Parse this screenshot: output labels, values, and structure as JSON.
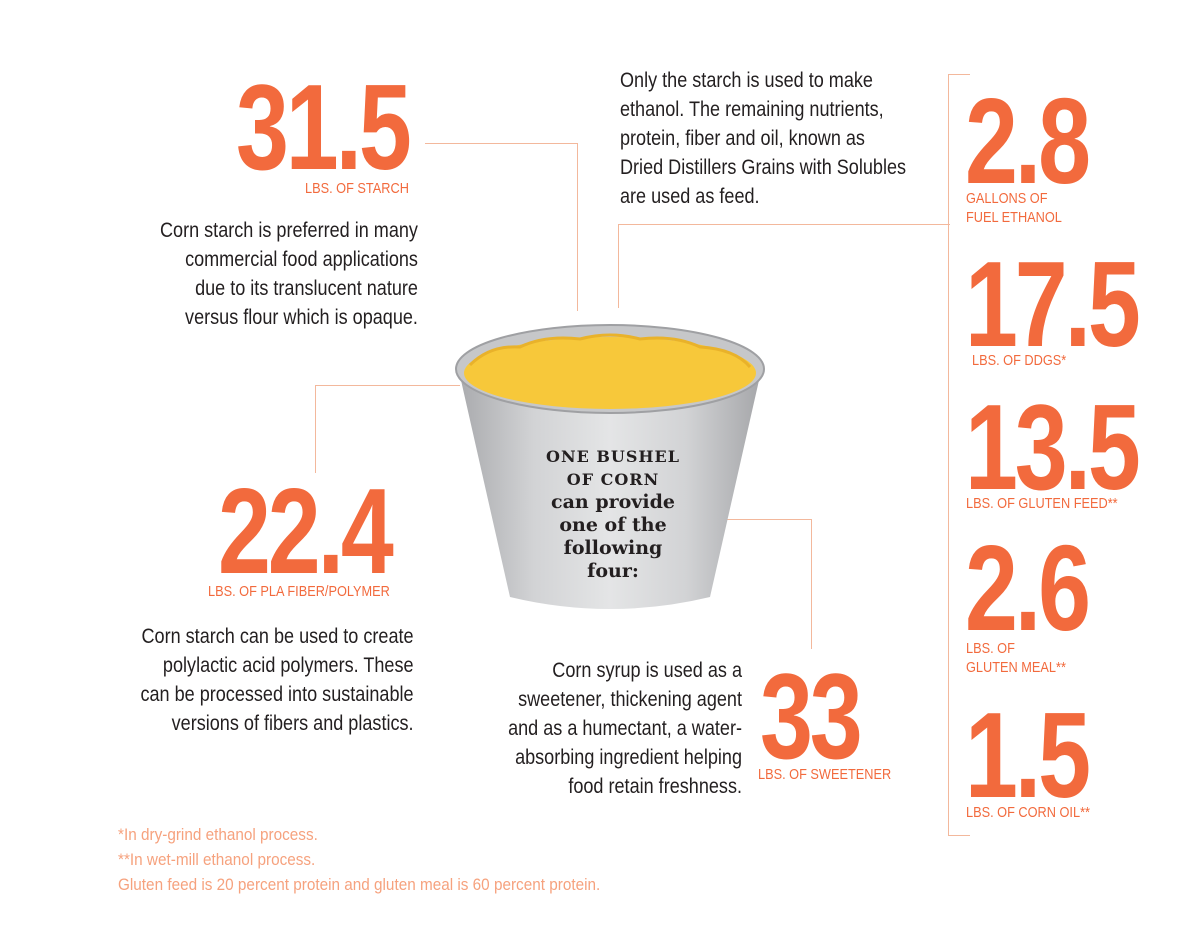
{
  "starch": {
    "value": "31.5",
    "unit": "LBS. OF STARCH",
    "text": [
      "Corn starch is preferred in many",
      "commercial food applications",
      "due to its translucent nature",
      "versus flour which is opaque."
    ]
  },
  "ethanol_note": {
    "text": [
      "Only the starch is used to make",
      "ethanol. The remaining nutrients,",
      "protein, fiber and oil, known as",
      "Dried Distillers Grains with Solubles",
      "are used as feed."
    ]
  },
  "pla": {
    "value": "22.4",
    "unit": "LBS. OF PLA FIBER/POLYMER",
    "text": [
      "Corn starch can be used to create",
      "polylactic acid polymers. These",
      "can be processed into sustainable",
      "versions of fibers and plastics."
    ]
  },
  "sweetener": {
    "value": "33",
    "unit": "LBS. OF SWEETENER",
    "text": [
      "Corn syrup is used as a",
      "sweetener, thickening agent",
      "and as a humectant, a water-",
      "absorbing ingredient helping",
      "food retain freshness."
    ]
  },
  "bushel": {
    "lines": [
      "ONE BUSHEL",
      "OF CORN",
      "can provide",
      "one of the",
      "following",
      "four:"
    ]
  },
  "ethanol_items": [
    {
      "value": "2.8",
      "unit_lines": [
        "GALLONS OF",
        "FUEL ETHANOL"
      ]
    },
    {
      "value": "17.5",
      "unit_lines": [
        "LBS. OF DDGS*"
      ]
    },
    {
      "value": "13.5",
      "unit_lines": [
        "LBS. OF GLUTEN FEED**"
      ]
    },
    {
      "value": "2.6",
      "unit_lines": [
        "LBS. OF",
        "GLUTEN MEAL**"
      ]
    },
    {
      "value": "1.5",
      "unit_lines": [
        "LBS. OF CORN OIL**"
      ]
    }
  ],
  "footnotes": [
    "*In dry-grind ethanol process.",
    "**In wet-mill ethanol process.",
    "Gluten feed is 20 percent protein and gluten meal is 60 percent protein."
  ],
  "colors": {
    "accent": "#f26a3d",
    "connector": "#f3b89c",
    "corn": "#f7c83a",
    "bucket": "#c8c9cb"
  }
}
